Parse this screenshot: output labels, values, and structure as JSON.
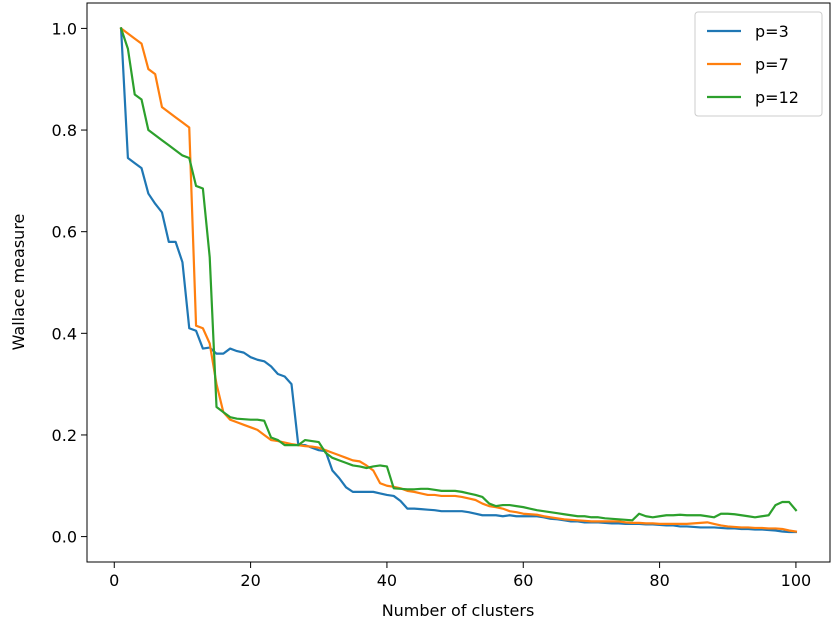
{
  "chart_data": {
    "type": "line",
    "title": "",
    "xlabel": "Number of clusters",
    "ylabel": "Wallace measure",
    "xlim": [
      -4,
      105
    ],
    "ylim": [
      -0.05,
      1.05
    ],
    "xticks": [
      0,
      20,
      40,
      60,
      80,
      100
    ],
    "yticks": [
      0.0,
      0.2,
      0.4,
      0.6,
      0.8,
      1.0
    ],
    "xtick_labels": [
      "0",
      "20",
      "40",
      "60",
      "80",
      "100"
    ],
    "ytick_labels": [
      "0.0",
      "0.2",
      "0.4",
      "0.6",
      "0.8",
      "1.0"
    ],
    "grid": false,
    "legend_position": "top-right",
    "series": [
      {
        "name": "p=3",
        "color": "#1f77b4",
        "x": [
          1,
          2,
          3,
          4,
          5,
          6,
          7,
          8,
          9,
          10,
          11,
          12,
          13,
          14,
          15,
          16,
          17,
          18,
          19,
          20,
          21,
          22,
          23,
          24,
          25,
          26,
          27,
          28,
          29,
          30,
          31,
          32,
          33,
          34,
          35,
          36,
          37,
          38,
          39,
          40,
          41,
          42,
          43,
          44,
          45,
          46,
          47,
          48,
          49,
          50,
          51,
          52,
          53,
          54,
          55,
          56,
          57,
          58,
          59,
          60,
          61,
          62,
          63,
          64,
          65,
          66,
          67,
          68,
          69,
          70,
          71,
          72,
          73,
          74,
          75,
          76,
          77,
          78,
          79,
          80,
          81,
          82,
          83,
          84,
          85,
          86,
          87,
          88,
          89,
          90,
          91,
          92,
          93,
          94,
          95,
          96,
          97,
          98,
          99,
          100
        ],
        "values": [
          1.0,
          0.745,
          0.735,
          0.725,
          0.675,
          0.655,
          0.638,
          0.58,
          0.58,
          0.54,
          0.41,
          0.405,
          0.37,
          0.372,
          0.36,
          0.36,
          0.37,
          0.365,
          0.362,
          0.353,
          0.348,
          0.345,
          0.335,
          0.32,
          0.315,
          0.3,
          0.18,
          0.18,
          0.175,
          0.17,
          0.168,
          0.13,
          0.115,
          0.097,
          0.088,
          0.088,
          0.088,
          0.088,
          0.085,
          0.082,
          0.08,
          0.07,
          0.055,
          0.055,
          0.054,
          0.053,
          0.052,
          0.05,
          0.05,
          0.05,
          0.05,
          0.048,
          0.045,
          0.042,
          0.042,
          0.042,
          0.04,
          0.042,
          0.04,
          0.04,
          0.04,
          0.04,
          0.038,
          0.035,
          0.034,
          0.032,
          0.03,
          0.03,
          0.028,
          0.028,
          0.028,
          0.027,
          0.026,
          0.026,
          0.025,
          0.025,
          0.025,
          0.024,
          0.024,
          0.023,
          0.022,
          0.022,
          0.02,
          0.02,
          0.019,
          0.018,
          0.018,
          0.018,
          0.017,
          0.016,
          0.016,
          0.015,
          0.015,
          0.014,
          0.014,
          0.013,
          0.012,
          0.01,
          0.009,
          0.009
        ]
      },
      {
        "name": "p=7",
        "color": "#ff7f0e",
        "x": [
          1,
          2,
          3,
          4,
          5,
          6,
          7,
          8,
          9,
          10,
          11,
          12,
          13,
          14,
          15,
          16,
          17,
          18,
          19,
          20,
          21,
          22,
          23,
          24,
          25,
          26,
          27,
          28,
          29,
          30,
          31,
          32,
          33,
          34,
          35,
          36,
          37,
          38,
          39,
          40,
          41,
          42,
          43,
          44,
          45,
          46,
          47,
          48,
          49,
          50,
          51,
          52,
          53,
          54,
          55,
          56,
          57,
          58,
          59,
          60,
          61,
          62,
          63,
          64,
          65,
          66,
          67,
          68,
          69,
          70,
          71,
          72,
          73,
          74,
          75,
          76,
          77,
          78,
          79,
          80,
          81,
          82,
          83,
          84,
          85,
          86,
          87,
          88,
          89,
          90,
          91,
          92,
          93,
          94,
          95,
          96,
          97,
          98,
          99,
          100
        ],
        "values": [
          1.0,
          0.99,
          0.98,
          0.97,
          0.92,
          0.91,
          0.845,
          0.835,
          0.825,
          0.815,
          0.805,
          0.415,
          0.41,
          0.38,
          0.3,
          0.245,
          0.23,
          0.225,
          0.22,
          0.215,
          0.21,
          0.2,
          0.19,
          0.188,
          0.185,
          0.182,
          0.18,
          0.178,
          0.177,
          0.175,
          0.17,
          0.165,
          0.16,
          0.155,
          0.15,
          0.148,
          0.14,
          0.13,
          0.105,
          0.1,
          0.098,
          0.095,
          0.09,
          0.088,
          0.085,
          0.082,
          0.082,
          0.08,
          0.08,
          0.08,
          0.078,
          0.075,
          0.072,
          0.065,
          0.06,
          0.058,
          0.055,
          0.05,
          0.048,
          0.045,
          0.044,
          0.043,
          0.04,
          0.038,
          0.036,
          0.034,
          0.033,
          0.032,
          0.031,
          0.03,
          0.03,
          0.03,
          0.03,
          0.03,
          0.028,
          0.027,
          0.027,
          0.026,
          0.026,
          0.025,
          0.025,
          0.025,
          0.025,
          0.025,
          0.026,
          0.027,
          0.028,
          0.025,
          0.022,
          0.02,
          0.019,
          0.018,
          0.018,
          0.017,
          0.017,
          0.016,
          0.016,
          0.015,
          0.012,
          0.01
        ]
      },
      {
        "name": "p=12",
        "color": "#2ca02c",
        "x": [
          1,
          2,
          3,
          4,
          5,
          6,
          7,
          8,
          9,
          10,
          11,
          12,
          13,
          14,
          15,
          16,
          17,
          18,
          19,
          20,
          21,
          22,
          23,
          24,
          25,
          26,
          27,
          28,
          29,
          30,
          31,
          32,
          33,
          34,
          35,
          36,
          37,
          38,
          39,
          40,
          41,
          42,
          43,
          44,
          45,
          46,
          47,
          48,
          49,
          50,
          51,
          52,
          53,
          54,
          55,
          56,
          57,
          58,
          59,
          60,
          61,
          62,
          63,
          64,
          65,
          66,
          67,
          68,
          69,
          70,
          71,
          72,
          73,
          74,
          75,
          76,
          77,
          78,
          79,
          80,
          81,
          82,
          83,
          84,
          85,
          86,
          87,
          88,
          89,
          90,
          91,
          92,
          93,
          94,
          95,
          96,
          97,
          98,
          99,
          100
        ],
        "values": [
          1.0,
          0.96,
          0.87,
          0.86,
          0.8,
          0.79,
          0.78,
          0.77,
          0.76,
          0.75,
          0.745,
          0.69,
          0.685,
          0.55,
          0.255,
          0.245,
          0.235,
          0.232,
          0.231,
          0.23,
          0.23,
          0.228,
          0.195,
          0.19,
          0.18,
          0.18,
          0.18,
          0.19,
          0.188,
          0.186,
          0.165,
          0.155,
          0.15,
          0.145,
          0.14,
          0.138,
          0.135,
          0.138,
          0.14,
          0.138,
          0.095,
          0.094,
          0.093,
          0.093,
          0.094,
          0.094,
          0.092,
          0.09,
          0.09,
          0.09,
          0.088,
          0.085,
          0.082,
          0.078,
          0.065,
          0.06,
          0.062,
          0.062,
          0.06,
          0.058,
          0.055,
          0.052,
          0.05,
          0.048,
          0.046,
          0.044,
          0.042,
          0.04,
          0.04,
          0.038,
          0.038,
          0.036,
          0.035,
          0.034,
          0.033,
          0.032,
          0.045,
          0.04,
          0.038,
          0.04,
          0.042,
          0.042,
          0.043,
          0.042,
          0.042,
          0.042,
          0.04,
          0.038,
          0.045,
          0.045,
          0.044,
          0.042,
          0.04,
          0.038,
          0.04,
          0.042,
          0.062,
          0.068,
          0.068,
          0.052
        ]
      }
    ]
  }
}
